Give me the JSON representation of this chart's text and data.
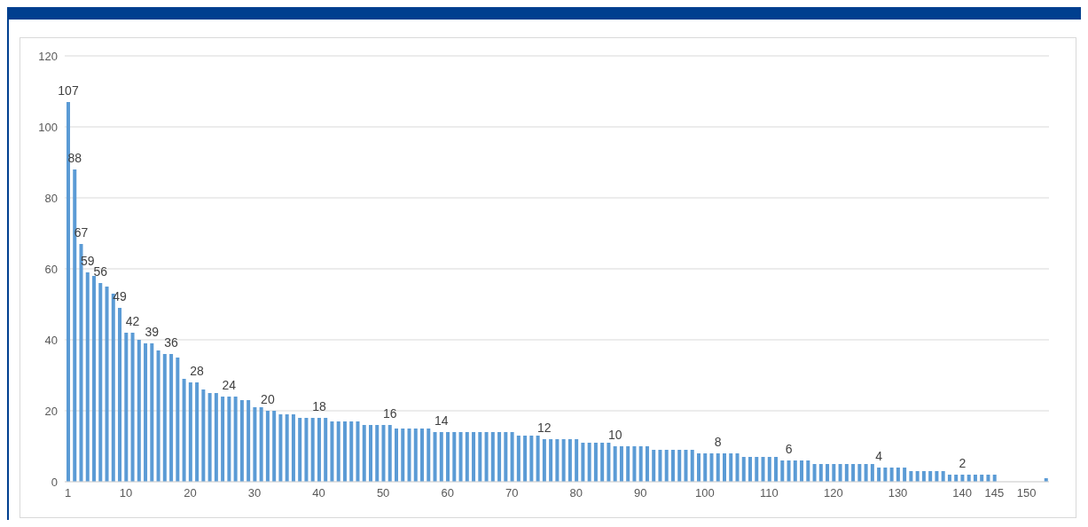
{
  "chart_data": {
    "type": "bar",
    "x": [
      1,
      2,
      3,
      4,
      5,
      6,
      7,
      8,
      9,
      10,
      11,
      12,
      13,
      14,
      15,
      16,
      17,
      18,
      19,
      20,
      21,
      22,
      23,
      24,
      25,
      26,
      27,
      28,
      29,
      30,
      31,
      32,
      33,
      34,
      35,
      36,
      37,
      38,
      39,
      40,
      41,
      42,
      43,
      44,
      45,
      46,
      47,
      48,
      49,
      50,
      51,
      52,
      53,
      54,
      55,
      56,
      57,
      58,
      59,
      60,
      61,
      62,
      63,
      64,
      65,
      66,
      67,
      68,
      69,
      70,
      71,
      72,
      73,
      74,
      75,
      76,
      77,
      78,
      79,
      80,
      81,
      82,
      83,
      84,
      85,
      86,
      87,
      88,
      89,
      90,
      91,
      92,
      93,
      94,
      95,
      96,
      97,
      98,
      99,
      100,
      101,
      102,
      103,
      104,
      105,
      106,
      107,
      108,
      109,
      110,
      111,
      112,
      113,
      114,
      115,
      116,
      117,
      118,
      119,
      120,
      121,
      122,
      123,
      124,
      125,
      126,
      127,
      128,
      129,
      130,
      131,
      132,
      133,
      134,
      135,
      136,
      137,
      138,
      139,
      140,
      141,
      142,
      143,
      144,
      145,
      146,
      147,
      148,
      149,
      150,
      151,
      152,
      153
    ],
    "values": [
      107,
      88,
      67,
      59,
      58,
      56,
      55,
      53,
      49,
      42,
      42,
      40,
      39,
      39,
      37,
      36,
      36,
      35,
      29,
      28,
      28,
      26,
      25,
      25,
      24,
      24,
      24,
      23,
      23,
      21,
      21,
      20,
      20,
      19,
      19,
      19,
      18,
      18,
      18,
      18,
      18,
      17,
      17,
      17,
      17,
      17,
      16,
      16,
      16,
      16,
      16,
      15,
      15,
      15,
      15,
      15,
      15,
      14,
      14,
      14,
      14,
      14,
      14,
      14,
      14,
      14,
      14,
      14,
      14,
      14,
      13,
      13,
      13,
      13,
      12,
      12,
      12,
      12,
      12,
      12,
      11,
      11,
      11,
      11,
      11,
      10,
      10,
      10,
      10,
      10,
      10,
      9,
      9,
      9,
      9,
      9,
      9,
      9,
      8,
      8,
      8,
      8,
      8,
      8,
      8,
      7,
      7,
      7,
      7,
      7,
      7,
      6,
      6,
      6,
      6,
      6,
      5,
      5,
      5,
      5,
      5,
      5,
      5,
      5,
      5,
      5,
      4,
      4,
      4,
      4,
      4,
      3,
      3,
      3,
      3,
      3,
      3,
      2,
      2,
      2,
      2,
      2,
      2,
      2,
      2,
      null,
      null,
      null,
      null,
      null,
      null,
      null,
      1
    ],
    "value_labels": [
      "107",
      "88",
      "67",
      "59",
      null,
      "56",
      null,
      null,
      "49",
      null,
      "42",
      null,
      null,
      "39",
      null,
      null,
      "36",
      null,
      null,
      null,
      "28",
      null,
      null,
      null,
      null,
      "24",
      null,
      null,
      null,
      null,
      null,
      "20",
      null,
      null,
      null,
      null,
      null,
      null,
      null,
      "18",
      null,
      null,
      null,
      null,
      null,
      null,
      null,
      null,
      null,
      null,
      "16",
      null,
      null,
      null,
      null,
      null,
      null,
      null,
      "14",
      null,
      null,
      null,
      null,
      null,
      null,
      null,
      null,
      null,
      null,
      null,
      null,
      null,
      null,
      null,
      "12",
      null,
      null,
      null,
      null,
      null,
      null,
      null,
      null,
      null,
      null,
      "10",
      null,
      null,
      null,
      null,
      null,
      null,
      null,
      null,
      null,
      null,
      null,
      null,
      null,
      null,
      null,
      "8",
      null,
      null,
      null,
      null,
      null,
      null,
      null,
      null,
      null,
      null,
      "6",
      null,
      null,
      null,
      null,
      null,
      null,
      null,
      null,
      null,
      null,
      null,
      null,
      null,
      "4",
      null,
      null,
      null,
      null,
      null,
      null,
      null,
      null,
      null,
      null,
      null,
      null,
      "2",
      null,
      null,
      null,
      null,
      null,
      null,
      null,
      null,
      null,
      null,
      null,
      null,
      null
    ],
    "color": "#5b9bd5",
    "xlim": [
      0.5,
      153.5
    ],
    "xticks": [
      1,
      10,
      20,
      30,
      40,
      50,
      60,
      70,
      80,
      90,
      100,
      110,
      120,
      130,
      140,
      145,
      150
    ],
    "ylim": [
      0,
      120
    ],
    "yticks": [
      0,
      20,
      40,
      60,
      80,
      100,
      120
    ],
    "grid": "y"
  }
}
